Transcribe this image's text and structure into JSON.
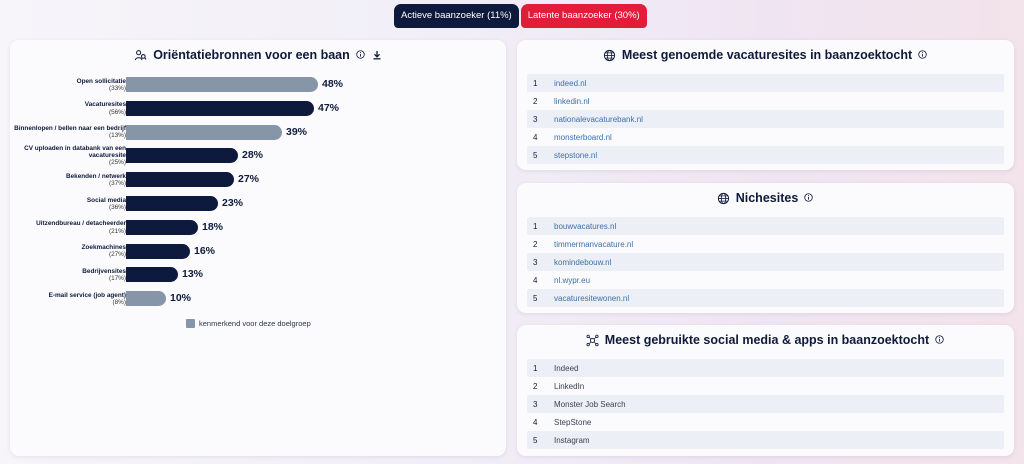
{
  "tabs": [
    {
      "label": "Actieve baanzoeker (11%)"
    },
    {
      "label": "Latente baanzoeker (30%)"
    }
  ],
  "orientation": {
    "title": "Oriëntatiebronnen voor een baan",
    "legend_label": "kenmerkend voor deze doelgroep"
  },
  "chart_data": {
    "type": "bar",
    "orientation": "horizontal",
    "title": "Oriëntatiebronnen voor een baan",
    "categories": [
      "Open sollicitatie",
      "Vacaturesites",
      "Binnenlopen / bellen naar een bedrijf",
      "CV uploaden in databank van een vacaturesite",
      "Bekenden / netwerk",
      "Social media",
      "Uitzendbureau / detacheerder",
      "Zoekmachines",
      "Bedrijvensites",
      "E-mail service (job agent)"
    ],
    "sublabels": [
      "(33%)",
      "(56%)",
      "(13%)",
      "(25%)",
      "(37%)",
      "(36%)",
      "(21%)",
      "(27%)",
      "(17%)",
      "(8%)"
    ],
    "values": [
      48,
      47,
      39,
      28,
      27,
      23,
      18,
      16,
      13,
      10
    ],
    "value_labels": [
      "48%",
      "47%",
      "39%",
      "28%",
      "27%",
      "23%",
      "18%",
      "16%",
      "13%",
      "10%"
    ],
    "highlighted": [
      true,
      false,
      true,
      false,
      false,
      false,
      false,
      false,
      false,
      true
    ],
    "xlim": [
      0,
      100
    ],
    "legend": "kenmerkend voor deze doelgroep",
    "colors": {
      "default": "#0e1a3d",
      "highlighted": "#8795a8"
    }
  },
  "vacaturesites": {
    "title": "Meest genoemde vacaturesites in baanzoektocht",
    "items": [
      {
        "num": "1",
        "text": "indeed.nl"
      },
      {
        "num": "2",
        "text": "linkedin.nl"
      },
      {
        "num": "3",
        "text": "nationalevacaturebank.nl"
      },
      {
        "num": "4",
        "text": "monsterboard.nl"
      },
      {
        "num": "5",
        "text": "stepstone.nl"
      }
    ]
  },
  "nichesites": {
    "title": "Nichesites",
    "items": [
      {
        "num": "1",
        "text": "bouwvacatures.nl"
      },
      {
        "num": "2",
        "text": "timmermanvacature.nl"
      },
      {
        "num": "3",
        "text": "komindebouw.nl"
      },
      {
        "num": "4",
        "text": "nl.wypr.eu"
      },
      {
        "num": "5",
        "text": "vacaturesitewonen.nl"
      }
    ]
  },
  "socialmedia": {
    "title": "Meest gebruikte social media & apps in baanzoektocht",
    "items": [
      {
        "num": "1",
        "text": "Indeed"
      },
      {
        "num": "2",
        "text": "LinkedIn"
      },
      {
        "num": "3",
        "text": "Monster Job Search"
      },
      {
        "num": "4",
        "text": "StepStone"
      },
      {
        "num": "5",
        "text": "Instagram"
      }
    ]
  },
  "colors": {
    "navy": "#0e1a3d",
    "red": "#e11d3a",
    "link": "#3d6fa8"
  }
}
